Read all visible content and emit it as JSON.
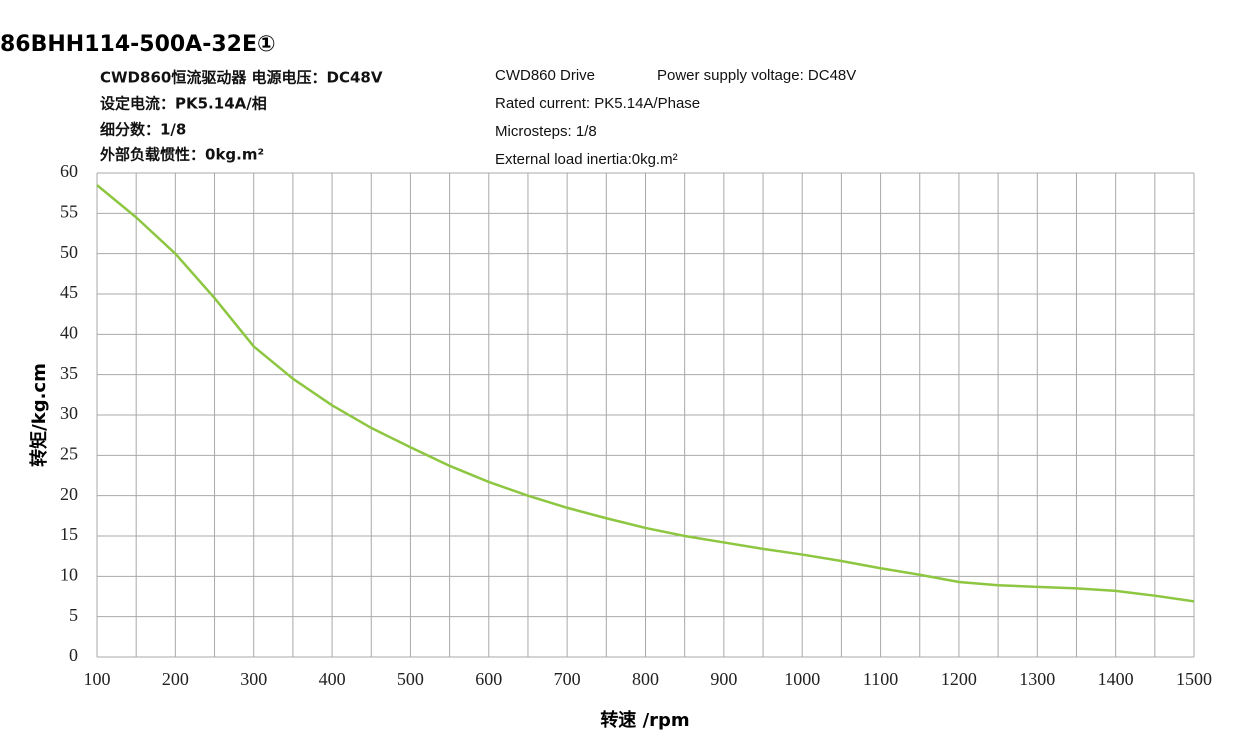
{
  "chart_data": {
    "type": "line",
    "title": "86BHH114-500A-32E①",
    "annotations_left": [
      "CWD860恒流驱动器  电源电压：DC48V",
      "设定电流：PK5.14A/相",
      "细分数：1/8",
      "外部负载惯性：0kg.m²"
    ],
    "annotations_right": [
      "CWD860 Drive",
      "Power supply voltage: DC48V",
      "Rated current: PK5.14A/Phase",
      "Microsteps: 1/8",
      "External load inertia:0kg.m²"
    ],
    "x_label": "转速 /rpm",
    "y_label": "转矩/kg.cm",
    "x": [
      100,
      150,
      200,
      250,
      300,
      350,
      400,
      450,
      500,
      550,
      600,
      650,
      700,
      750,
      800,
      850,
      900,
      950,
      1000,
      1050,
      1100,
      1150,
      1200,
      1250,
      1300,
      1350,
      1400,
      1450,
      1500
    ],
    "series": [
      {
        "color": "#8dc641",
        "values": [
          58.5,
          54.5,
          50,
          44.5,
          38.5,
          34.5,
          31.2,
          28.4,
          26,
          23.7,
          21.7,
          20,
          18.5,
          17.2,
          16,
          15,
          14.2,
          13.4,
          12.7,
          11.9,
          11,
          10.2,
          9.3,
          8.9,
          8.7,
          8.5,
          8.2,
          7.6,
          6.9
        ]
      }
    ],
    "xlim": [
      100,
      1500
    ],
    "ylim": [
      0,
      60
    ],
    "xticks": [
      100,
      200,
      300,
      400,
      500,
      600,
      700,
      800,
      900,
      1000,
      1100,
      1200,
      1300,
      1400,
      1500
    ],
    "x_minor_ticks": [
      150,
      250,
      350,
      450,
      550,
      650,
      750,
      850,
      950,
      1050,
      1150,
      1250,
      1350,
      1450
    ],
    "yticks": [
      0,
      5,
      10,
      15,
      20,
      25,
      30,
      35,
      40,
      45,
      50,
      55,
      60
    ],
    "grid": true
  }
}
